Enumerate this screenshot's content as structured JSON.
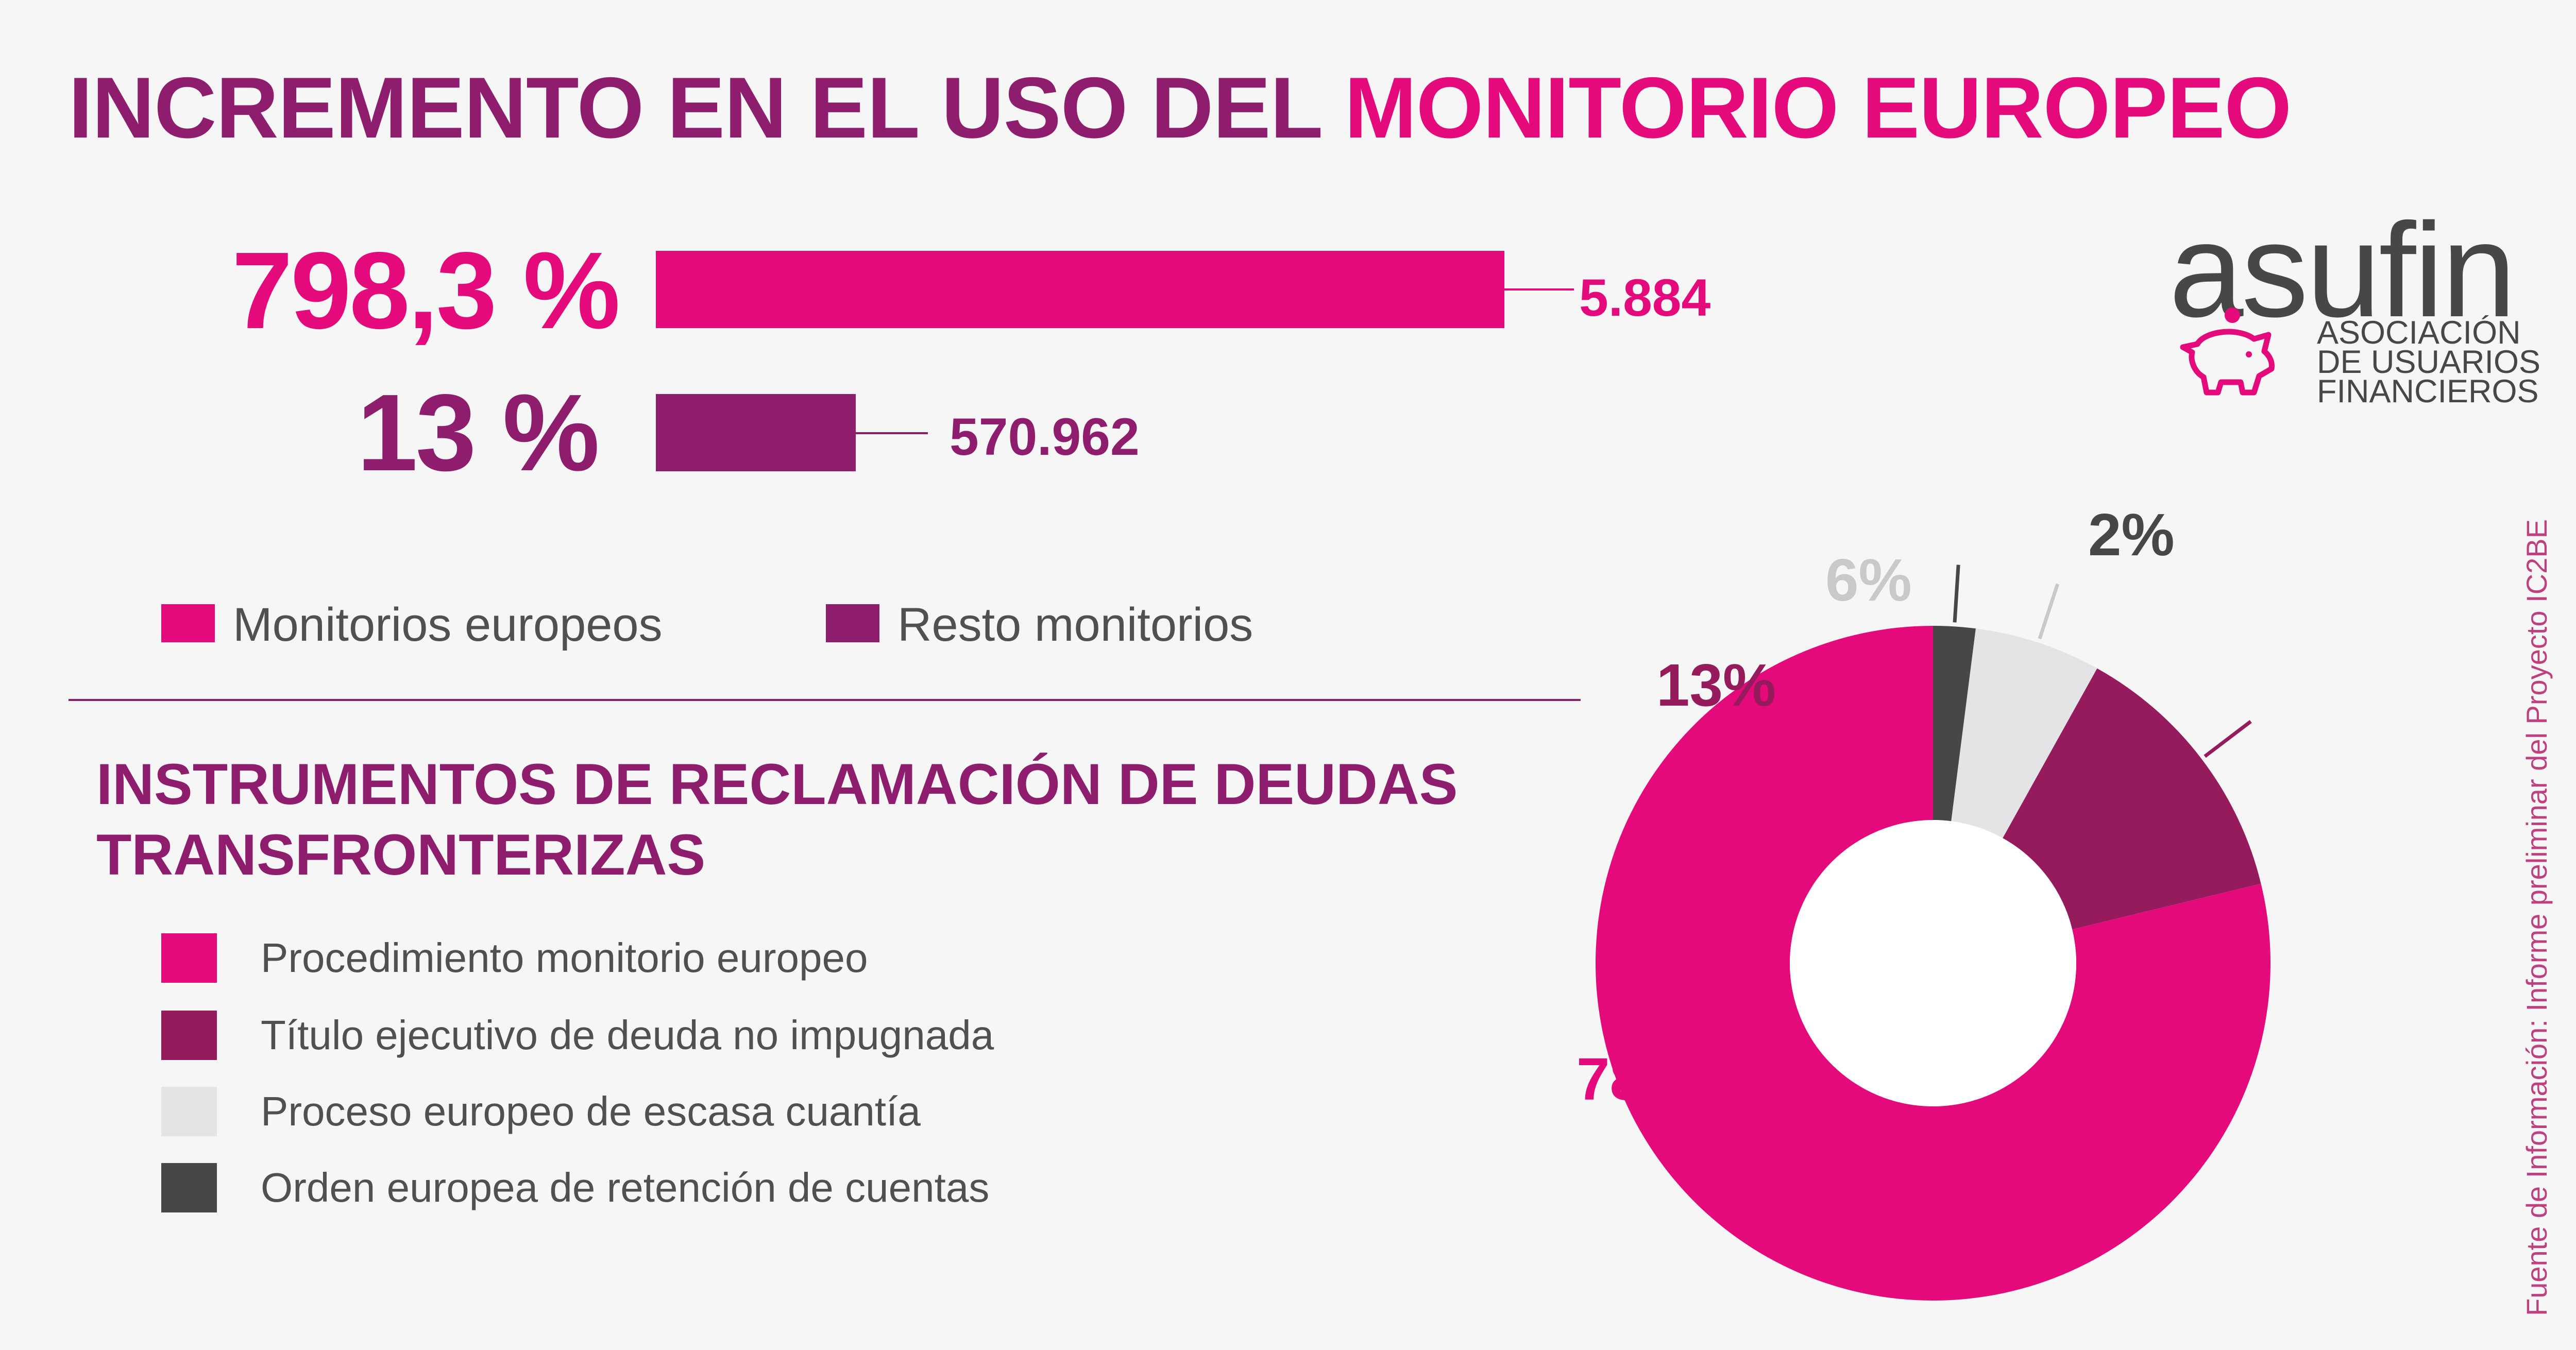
{
  "title": {
    "part1": "INCREMENTO EN EL USO DEL ",
    "part2": "MONITORIO EUROPEO"
  },
  "bar_chart": {
    "rows": [
      {
        "percent": "798,3 %",
        "value_label": "5.884",
        "color": "#e40a7c"
      },
      {
        "percent": "13 %",
        "value_label": "570.962",
        "color": "#8e1d6e"
      }
    ],
    "legend": [
      {
        "label": "Monitorios europeos",
        "color": "#e40a7c"
      },
      {
        "label": "Resto monitorios",
        "color": "#8e1d6e"
      }
    ]
  },
  "section": {
    "title": "INSTRUMENTOS DE RECLAMACIÓN DE DEUDAS TRANSFRONTERIZAS"
  },
  "chart_data": {
    "type": "pie",
    "title": "INSTRUMENTOS DE RECLAMACIÓN DE DEUDAS TRANSFRONTERIZAS",
    "categories": [
      "Procedimiento monitorio europeo",
      "Título ejecutivo de deuda no impugnada",
      "Proceso europeo de escasa cuantía",
      "Orden europea de retención de cuentas"
    ],
    "values": [
      78,
      13,
      6,
      2
    ],
    "labels": [
      "78%",
      "13%",
      "6%",
      "2%"
    ],
    "colors": [
      "#e40a7c",
      "#961b5c",
      "#e4e4e7",
      "#474747"
    ],
    "label_colors": [
      "#e40a7c",
      "#961b5c",
      "#c9c9c9",
      "#474747"
    ],
    "donut": true,
    "legend_position": "left"
  },
  "logo": {
    "word": "asufin",
    "line1": "ASOCIACIÓN",
    "line2": "DE USUARIOS",
    "line3": "FINANCIEROS",
    "icon": "piggy-bank-icon"
  },
  "source": "Fuente de Información: Informe preliminar del Proyecto IC2BE"
}
